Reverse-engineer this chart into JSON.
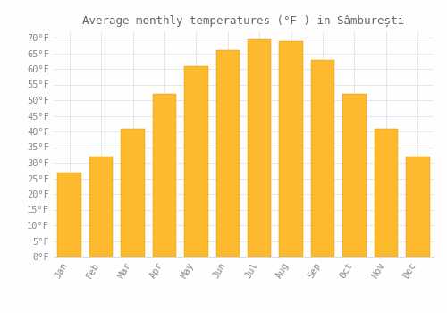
{
  "title": "Average monthly temperatures (°F ) in Sâmburești",
  "months": [
    "Jan",
    "Feb",
    "Mar",
    "Apr",
    "May",
    "Jun",
    "Jul",
    "Aug",
    "Sep",
    "Oct",
    "Nov",
    "Dec"
  ],
  "values": [
    27,
    32,
    41,
    52,
    61,
    66,
    69.5,
    69,
    63,
    52,
    41,
    32
  ],
  "bar_color_top": "#FDBA2E",
  "bar_color_bottom": "#F5A000",
  "bar_edge_color": "#E09000",
  "background_color": "#FEFEFE",
  "grid_color": "#DDDDDD",
  "ytick_labels": [
    "0°F",
    "5°F",
    "10°F",
    "15°F",
    "20°F",
    "25°F",
    "30°F",
    "35°F",
    "40°F",
    "45°F",
    "50°F",
    "55°F",
    "60°F",
    "65°F",
    "70°F"
  ],
  "ytick_values": [
    0,
    5,
    10,
    15,
    20,
    25,
    30,
    35,
    40,
    45,
    50,
    55,
    60,
    65,
    70
  ],
  "ylim": [
    0,
    72
  ],
  "title_fontsize": 9,
  "tick_fontsize": 7.5,
  "text_color": "#888888",
  "title_color": "#666666"
}
